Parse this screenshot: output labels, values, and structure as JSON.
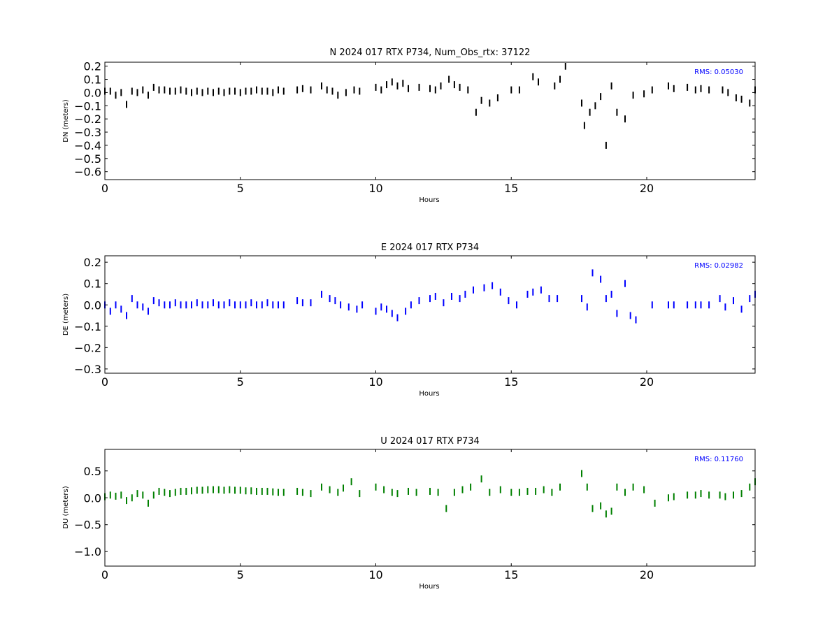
{
  "chart_data": [
    {
      "type": "scatter",
      "title": "N 2024 017 RTX  P734, Num_Obs_rtx: 37122",
      "xlabel": "Hours",
      "ylabel": "DN (meters)",
      "xlim": [
        0,
        24
      ],
      "ylim": [
        -0.66,
        0.23
      ],
      "xticks": [
        "0",
        "5",
        "10",
        "15",
        "20"
      ],
      "yticks": [
        "0.2",
        "0.1",
        "0.0",
        "−0.1",
        "−0.2",
        "−0.3",
        "−0.4",
        "−0.5",
        "−0.6"
      ],
      "annotation": "RMS:  0.05030",
      "color": "#000000",
      "series": [
        {
          "x": [
            0.0,
            0.2,
            0.4,
            0.6,
            0.8,
            1.0,
            1.2,
            1.4,
            1.6,
            1.8,
            2.0,
            2.2,
            2.4,
            2.6,
            2.8,
            3.0,
            3.2,
            3.4,
            3.6,
            3.8,
            4.0,
            4.2,
            4.4,
            4.6,
            4.8,
            5.0,
            5.2,
            5.4,
            5.6,
            5.8,
            6.0,
            6.2,
            6.4,
            6.6,
            7.1,
            7.3,
            7.6,
            8.0,
            8.2,
            8.4,
            8.6,
            8.9,
            9.2,
            9.4,
            10.0,
            10.2,
            10.4,
            10.6,
            10.8,
            11.0,
            11.2,
            11.6,
            12.0,
            12.2,
            12.4,
            12.7,
            12.9,
            13.1,
            13.4,
            13.7,
            13.9,
            14.2,
            14.5,
            15.0,
            15.3,
            15.8,
            16.0,
            16.6,
            16.8,
            17.0,
            17.6,
            17.7,
            17.9,
            18.1,
            18.3,
            18.5,
            18.7,
            18.9,
            19.2,
            19.5,
            19.9,
            20.2,
            20.8,
            21.0,
            21.5,
            21.8,
            22.0,
            22.3,
            22.8,
            23.0,
            23.3,
            23.5,
            23.8,
            24.0
          ],
          "y": [
            0.01,
            0.01,
            -0.02,
            0.0,
            -0.09,
            0.01,
            0.0,
            0.02,
            -0.02,
            0.04,
            0.02,
            0.02,
            0.01,
            0.01,
            0.02,
            0.01,
            0.0,
            0.01,
            0.0,
            0.01,
            0.0,
            0.01,
            0.0,
            0.01,
            0.01,
            0.0,
            0.01,
            0.01,
            0.02,
            0.01,
            0.01,
            0.0,
            0.02,
            0.01,
            0.02,
            0.03,
            0.02,
            0.05,
            0.02,
            0.01,
            -0.02,
            0.0,
            0.02,
            0.01,
            0.04,
            0.02,
            0.06,
            0.08,
            0.05,
            0.07,
            0.03,
            0.04,
            0.03,
            0.02,
            0.05,
            0.1,
            0.06,
            0.04,
            0.02,
            -0.15,
            -0.06,
            -0.08,
            -0.04,
            0.02,
            0.02,
            0.12,
            0.08,
            0.05,
            0.1,
            0.2,
            -0.08,
            -0.25,
            -0.15,
            -0.1,
            -0.03,
            -0.4,
            0.05,
            -0.15,
            -0.2,
            -0.02,
            -0.01,
            0.02,
            0.05,
            0.03,
            0.04,
            0.02,
            0.03,
            0.02,
            0.02,
            0.0,
            -0.04,
            -0.05,
            -0.08,
            0.02
          ]
        }
      ]
    },
    {
      "type": "scatter",
      "title": "E 2024 017 RTX  P734",
      "xlabel": "Hours",
      "ylabel": "DE (meters)",
      "xlim": [
        0,
        24
      ],
      "ylim": [
        -0.32,
        0.23
      ],
      "xticks": [
        "0",
        "5",
        "10",
        "15",
        "20"
      ],
      "yticks": [
        "0.2",
        "0.1",
        "0.0",
        "−0.1",
        "−0.2",
        "−0.3"
      ],
      "annotation": "RMS:  0.02982",
      "color": "#0000ff",
      "series": [
        {
          "x": [
            0.0,
            0.2,
            0.4,
            0.6,
            0.8,
            1.0,
            1.2,
            1.4,
            1.6,
            1.8,
            2.0,
            2.2,
            2.4,
            2.6,
            2.8,
            3.0,
            3.2,
            3.4,
            3.6,
            3.8,
            4.0,
            4.2,
            4.4,
            4.6,
            4.8,
            5.0,
            5.2,
            5.4,
            5.6,
            5.8,
            6.0,
            6.2,
            6.4,
            6.6,
            7.1,
            7.3,
            7.6,
            8.0,
            8.3,
            8.5,
            8.7,
            9.0,
            9.3,
            9.5,
            10.0,
            10.2,
            10.4,
            10.6,
            10.8,
            11.1,
            11.3,
            11.6,
            12.0,
            12.2,
            12.5,
            12.8,
            13.1,
            13.3,
            13.6,
            14.0,
            14.3,
            14.6,
            14.9,
            15.2,
            15.6,
            15.8,
            16.1,
            16.4,
            16.7,
            17.6,
            17.8,
            18.0,
            18.3,
            18.5,
            18.7,
            18.9,
            19.2,
            19.4,
            19.6,
            20.2,
            20.8,
            21.0,
            21.5,
            21.8,
            22.0,
            22.3,
            22.7,
            22.9,
            23.2,
            23.5,
            23.8,
            24.0
          ],
          "y": [
            0.0,
            -0.03,
            0.0,
            -0.02,
            -0.05,
            0.03,
            0.0,
            -0.01,
            -0.03,
            0.02,
            0.01,
            0.0,
            0.0,
            0.01,
            0.0,
            0.0,
            0.0,
            0.01,
            0.0,
            0.0,
            0.01,
            0.0,
            0.0,
            0.01,
            0.0,
            0.0,
            0.0,
            0.01,
            0.0,
            0.0,
            0.01,
            0.0,
            0.0,
            0.0,
            0.02,
            0.01,
            0.01,
            0.05,
            0.03,
            0.02,
            0.0,
            -0.01,
            -0.02,
            0.0,
            -0.03,
            -0.01,
            -0.02,
            -0.04,
            -0.06,
            -0.03,
            0.0,
            0.02,
            0.03,
            0.04,
            0.01,
            0.04,
            0.03,
            0.05,
            0.07,
            0.08,
            0.09,
            0.06,
            0.02,
            0.0,
            0.05,
            0.06,
            0.07,
            0.03,
            0.03,
            0.03,
            -0.01,
            0.15,
            0.12,
            0.03,
            0.05,
            -0.04,
            0.1,
            -0.05,
            -0.07,
            0.0,
            0.0,
            0.0,
            0.0,
            0.0,
            0.0,
            0.0,
            0.03,
            -0.01,
            0.02,
            -0.02,
            0.03,
            0.05
          ]
        }
      ]
    },
    {
      "type": "scatter",
      "title": "U 2024 017 RTX  P734",
      "xlabel": "Hours",
      "ylabel": "DU (meters)",
      "xlim": [
        0,
        24
      ],
      "ylim": [
        -1.27,
        0.9
      ],
      "xticks": [
        "0",
        "5",
        "10",
        "15",
        "20"
      ],
      "yticks": [
        "0.5",
        "0.0",
        "−0.5",
        "−1.0"
      ],
      "annotation": "RMS:  0.11760",
      "color": "#008000",
      "series": [
        {
          "x": [
            0.0,
            0.2,
            0.4,
            0.6,
            0.8,
            1.0,
            1.2,
            1.4,
            1.6,
            1.8,
            2.0,
            2.2,
            2.4,
            2.6,
            2.8,
            3.0,
            3.2,
            3.4,
            3.6,
            3.8,
            4.0,
            4.2,
            4.4,
            4.6,
            4.8,
            5.0,
            5.2,
            5.4,
            5.6,
            5.8,
            6.0,
            6.2,
            6.4,
            6.6,
            7.1,
            7.3,
            7.6,
            8.0,
            8.3,
            8.6,
            8.8,
            9.1,
            9.4,
            10.0,
            10.3,
            10.6,
            10.8,
            11.2,
            11.5,
            12.0,
            12.3,
            12.6,
            12.9,
            13.2,
            13.5,
            13.9,
            14.2,
            14.6,
            15.0,
            15.3,
            15.6,
            15.9,
            16.2,
            16.5,
            16.8,
            17.6,
            17.8,
            18.0,
            18.3,
            18.5,
            18.7,
            18.9,
            19.2,
            19.5,
            19.9,
            20.3,
            20.8,
            21.0,
            21.5,
            21.8,
            22.0,
            22.3,
            22.7,
            22.9,
            23.2,
            23.5,
            23.8,
            24.0
          ],
          "y": [
            0.02,
            0.05,
            0.03,
            0.05,
            -0.05,
            0.0,
            0.08,
            0.05,
            -0.1,
            0.05,
            0.12,
            0.1,
            0.08,
            0.1,
            0.12,
            0.12,
            0.13,
            0.14,
            0.14,
            0.15,
            0.15,
            0.15,
            0.14,
            0.15,
            0.14,
            0.14,
            0.13,
            0.13,
            0.12,
            0.12,
            0.12,
            0.11,
            0.1,
            0.1,
            0.12,
            0.1,
            0.08,
            0.2,
            0.15,
            0.1,
            0.18,
            0.3,
            0.08,
            0.2,
            0.15,
            0.1,
            0.08,
            0.12,
            0.1,
            0.12,
            0.1,
            -0.2,
            0.1,
            0.15,
            0.2,
            0.35,
            0.1,
            0.15,
            0.1,
            0.1,
            0.12,
            0.12,
            0.15,
            0.1,
            0.2,
            0.45,
            0.2,
            -0.2,
            -0.15,
            -0.3,
            -0.25,
            0.2,
            0.1,
            0.2,
            0.15,
            -0.1,
            0.0,
            0.02,
            0.05,
            0.05,
            0.08,
            0.05,
            0.05,
            0.02,
            0.05,
            0.08,
            0.2,
            0.3
          ]
        }
      ]
    }
  ]
}
